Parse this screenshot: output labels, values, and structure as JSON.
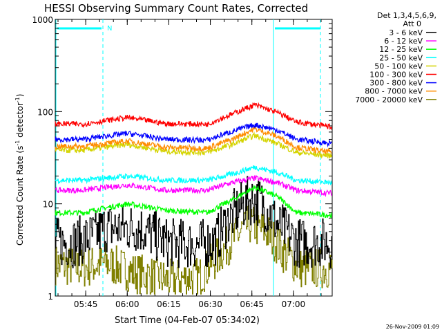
{
  "chart_data": {
    "type": "line",
    "title": "HESSI Observing Summary Count Rates, Corrected",
    "xlabel": "Start Time (04-Feb-07 05:34:02)",
    "ylabel_main": "Corrected Count Rate (s",
    "ylabel_sup1": "-1",
    "ylabel_mid": " detector",
    "ylabel_sup2": "-1",
    "ylabel_end": ")",
    "y_scale": "log",
    "ylim": [
      1,
      1000
    ],
    "xlim_minutes": [
      0,
      100
    ],
    "x_ticks": [
      {
        "t": 11,
        "label": "05:45"
      },
      {
        "t": 26,
        "label": "06:00"
      },
      {
        "t": 41,
        "label": "06:15"
      },
      {
        "t": 56,
        "label": "06:30"
      },
      {
        "t": 71,
        "label": "06:45"
      },
      {
        "t": 86,
        "label": "07:00"
      }
    ],
    "y_ticks": [
      {
        "v": 1,
        "label": "1"
      },
      {
        "v": 10,
        "label": "10"
      },
      {
        "v": 100,
        "label": "100"
      },
      {
        "v": 1000,
        "label": "1000"
      }
    ],
    "legend_header": [
      "Det 1,3,4,5,6,9,",
      "Att 0"
    ],
    "legend_position": "right",
    "series": [
      {
        "name": "3 - 6 keV",
        "color": "#000000",
        "style": "step",
        "points": [
          [
            0,
            3.8
          ],
          [
            7,
            3.8
          ],
          [
            14,
            4.5
          ],
          [
            18,
            5.5
          ],
          [
            30,
            5.5
          ],
          [
            40,
            3.8
          ],
          [
            52,
            3.6
          ],
          [
            58,
            4.0
          ],
          [
            64,
            7.5
          ],
          [
            70,
            11
          ],
          [
            74,
            10.5
          ],
          [
            80,
            6.0
          ],
          [
            87,
            3.8
          ],
          [
            100,
            3.8
          ]
        ]
      },
      {
        "name": "6 - 12 keV",
        "color": "#ff00ff",
        "points": [
          [
            0,
            14
          ],
          [
            10,
            14
          ],
          [
            26,
            16
          ],
          [
            40,
            14
          ],
          [
            55,
            14
          ],
          [
            64,
            17
          ],
          [
            72,
            19
          ],
          [
            80,
            17
          ],
          [
            87,
            14
          ],
          [
            100,
            13
          ]
        ]
      },
      {
        "name": "12 - 25 keV",
        "color": "#00ff00",
        "points": [
          [
            0,
            8
          ],
          [
            10,
            8
          ],
          [
            26,
            10
          ],
          [
            40,
            8.5
          ],
          [
            55,
            8
          ],
          [
            64,
            11
          ],
          [
            72,
            15
          ],
          [
            80,
            12
          ],
          [
            87,
            8
          ],
          [
            100,
            7.5
          ]
        ]
      },
      {
        "name": "25 - 50 keV",
        "color": "#00ffff",
        "points": [
          [
            0,
            18
          ],
          [
            10,
            18
          ],
          [
            26,
            20
          ],
          [
            40,
            18
          ],
          [
            55,
            18
          ],
          [
            64,
            21
          ],
          [
            72,
            25
          ],
          [
            80,
            22
          ],
          [
            87,
            18
          ],
          [
            100,
            17
          ]
        ]
      },
      {
        "name": "50 - 100 keV",
        "color": "#d4d400",
        "points": [
          [
            0,
            38
          ],
          [
            10,
            38
          ],
          [
            26,
            44
          ],
          [
            40,
            37
          ],
          [
            55,
            36
          ],
          [
            64,
            44
          ],
          [
            72,
            55
          ],
          [
            80,
            45
          ],
          [
            87,
            36
          ],
          [
            100,
            33
          ]
        ]
      },
      {
        "name": "100 - 300 keV",
        "color": "#ff0000",
        "points": [
          [
            0,
            74
          ],
          [
            10,
            73
          ],
          [
            26,
            86
          ],
          [
            40,
            74
          ],
          [
            55,
            73
          ],
          [
            64,
            94
          ],
          [
            72,
            118
          ],
          [
            80,
            98
          ],
          [
            87,
            77
          ],
          [
            100,
            68
          ]
        ]
      },
      {
        "name": "300 - 800 keV",
        "color": "#0000ff",
        "points": [
          [
            0,
            50
          ],
          [
            10,
            50
          ],
          [
            26,
            58
          ],
          [
            40,
            50
          ],
          [
            55,
            49
          ],
          [
            64,
            61
          ],
          [
            72,
            72
          ],
          [
            80,
            63
          ],
          [
            87,
            50
          ],
          [
            100,
            45
          ]
        ]
      },
      {
        "name": "800 - 7000 keV",
        "color": "#ff8c00",
        "points": [
          [
            0,
            42
          ],
          [
            10,
            42
          ],
          [
            26,
            48
          ],
          [
            40,
            41
          ],
          [
            55,
            40
          ],
          [
            64,
            50
          ],
          [
            72,
            65
          ],
          [
            80,
            54
          ],
          [
            87,
            41
          ],
          [
            100,
            36
          ]
        ]
      },
      {
        "name": "7000 - 20000 keV",
        "color": "#808000",
        "style": "step",
        "points": [
          [
            0,
            2.2
          ],
          [
            10,
            2.0
          ],
          [
            18,
            2.3
          ],
          [
            28,
            1.8
          ],
          [
            40,
            1.5
          ],
          [
            52,
            1.6
          ],
          [
            58,
            2.5
          ],
          [
            64,
            4.0
          ],
          [
            70,
            6.0
          ],
          [
            76,
            5.0
          ],
          [
            82,
            3.0
          ],
          [
            88,
            2.0
          ],
          [
            100,
            2.0
          ]
        ]
      }
    ],
    "annotations": [
      {
        "text": "N",
        "color": "#00ffff"
      }
    ]
  },
  "footer_timestamp": "26-Nov-2009 01:09"
}
